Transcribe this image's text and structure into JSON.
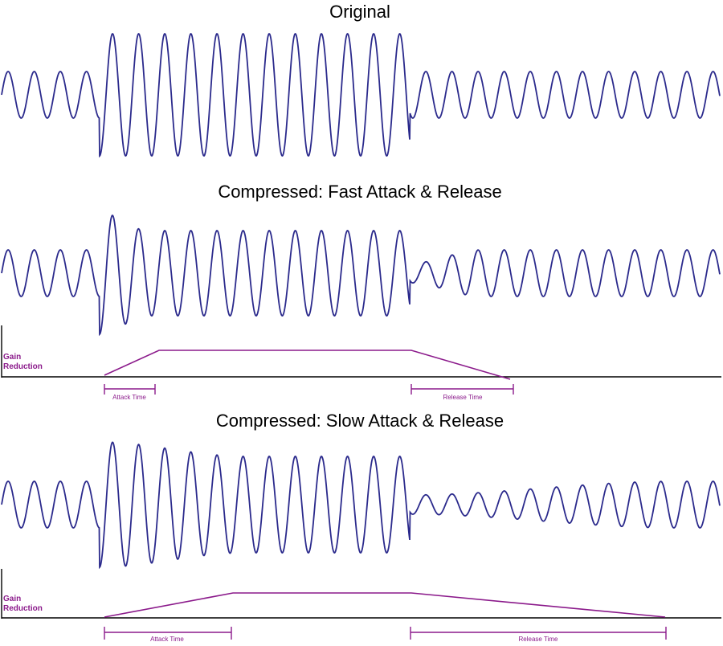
{
  "colors": {
    "wave": "#2b2a8c",
    "envelope": "#8b1a8b",
    "axis": "#000000"
  },
  "panels": [
    {
      "title": "Original",
      "show_gain": false
    },
    {
      "title": "Compressed: Fast Attack & Release",
      "show_gain": true,
      "gain_label_line1": "Gain",
      "gain_label_line2": "Reduction",
      "attack_label": "Attack Time",
      "release_label": "Release Time"
    },
    {
      "title": "Compressed: Slow Attack & Release",
      "show_gain": true,
      "gain_label_line1": "Gain",
      "gain_label_line2": "Reduction",
      "attack_label": "Attack Time",
      "release_label": "Release Time"
    }
  ]
}
